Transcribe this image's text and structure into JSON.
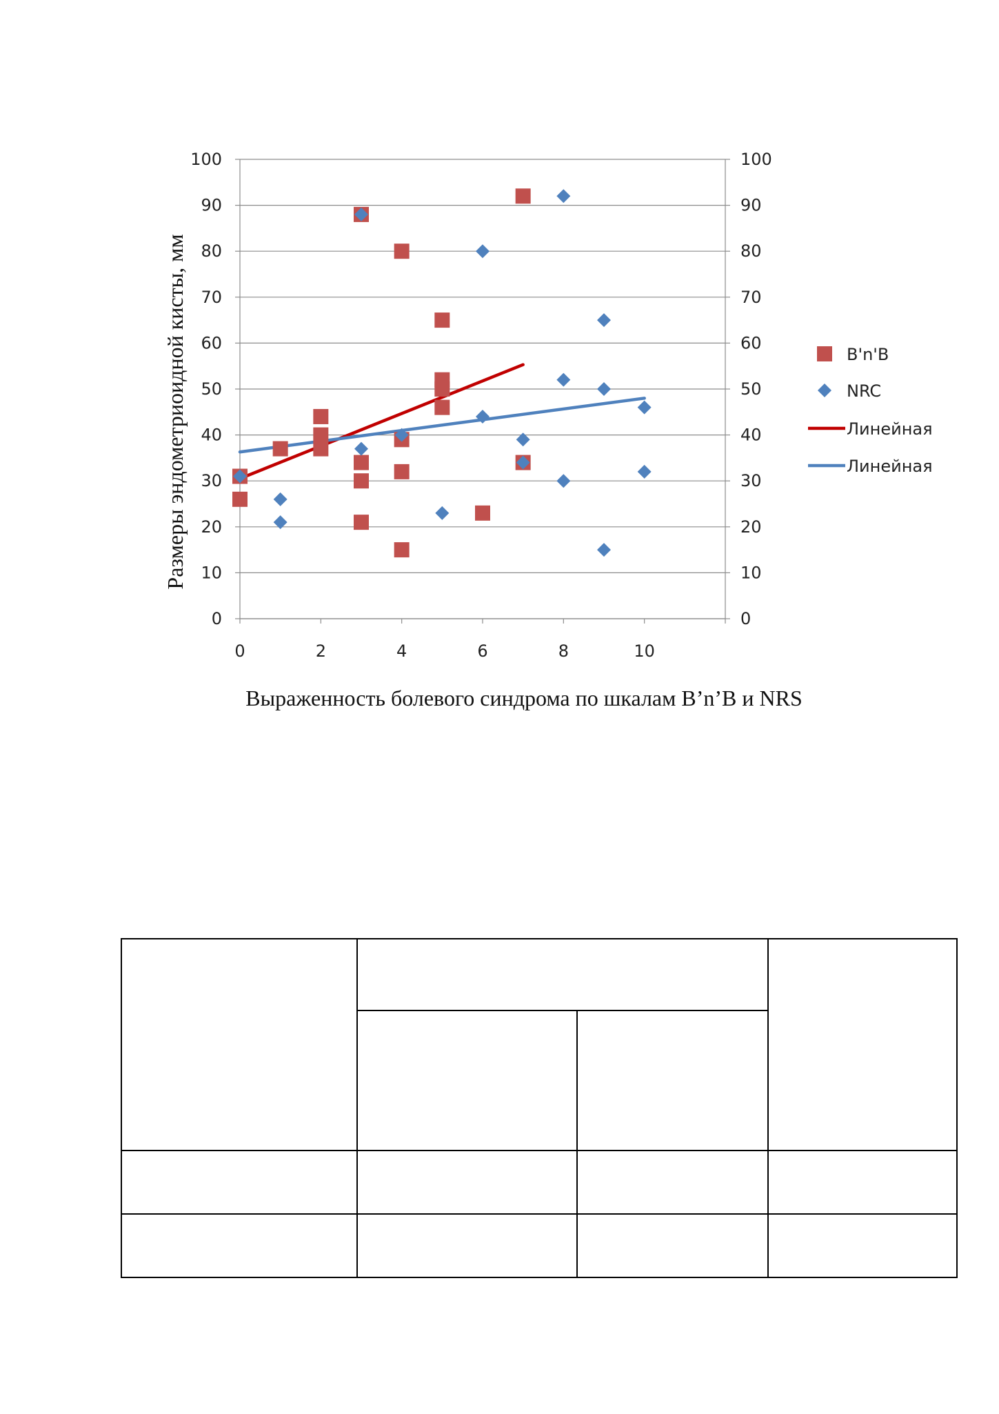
{
  "chart_data": {
    "type": "scatter",
    "xlabel": "Выраженность болевого синдрома по шкалам B’n’B и NRS",
    "ylabel": "Размеры эндометриоидной кисты, мм",
    "xlim": [
      0,
      12
    ],
    "ylim": [
      0,
      100
    ],
    "x_ticks": [
      "0",
      "2",
      "4",
      "6",
      "8",
      "10"
    ],
    "y_ticks": [
      "0",
      "10",
      "20",
      "30",
      "40",
      "50",
      "60",
      "70",
      "80",
      "90",
      "100"
    ],
    "grid": "horizontal",
    "secondary_y_axis": true,
    "legend_position": "right",
    "series": [
      {
        "name": "B'n'B",
        "marker": "square",
        "color": "#C0504D",
        "points": [
          [
            0,
            31
          ],
          [
            0,
            26
          ],
          [
            1,
            37
          ],
          [
            2,
            44
          ],
          [
            2,
            40
          ],
          [
            2,
            37
          ],
          [
            3,
            88
          ],
          [
            3,
            34
          ],
          [
            3,
            30
          ],
          [
            3,
            21
          ],
          [
            4,
            80
          ],
          [
            4,
            39
          ],
          [
            4,
            32
          ],
          [
            4,
            15
          ],
          [
            5,
            65
          ],
          [
            5,
            52
          ],
          [
            5,
            50
          ],
          [
            5,
            46
          ],
          [
            6,
            23
          ],
          [
            7,
            92
          ],
          [
            7,
            34
          ]
        ]
      },
      {
        "name": "NRC",
        "marker": "diamond",
        "color": "#4F81BD",
        "points": [
          [
            0,
            31
          ],
          [
            1,
            26
          ],
          [
            1,
            21
          ],
          [
            3,
            88
          ],
          [
            3,
            37
          ],
          [
            4,
            40
          ],
          [
            5,
            23
          ],
          [
            6,
            80
          ],
          [
            6,
            44
          ],
          [
            7,
            39
          ],
          [
            7,
            34
          ],
          [
            8,
            92
          ],
          [
            8,
            52
          ],
          [
            8,
            30
          ],
          [
            9,
            65
          ],
          [
            9,
            50
          ],
          [
            9,
            15
          ],
          [
            10,
            46
          ],
          [
            10,
            32
          ]
        ]
      }
    ],
    "trendlines": [
      {
        "name": "Линейная",
        "color": "#C00000",
        "from": [
          0,
          30.5
        ],
        "to": [
          7,
          55.3
        ]
      },
      {
        "name": "Линейная",
        "color": "#4F81BD",
        "from": [
          0,
          36.3
        ],
        "to": [
          10,
          48
        ]
      }
    ]
  }
}
